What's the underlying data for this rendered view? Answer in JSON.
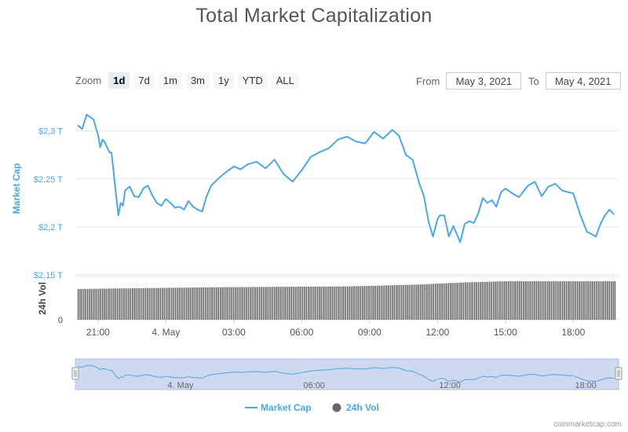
{
  "title": "Total Market Capitalization",
  "zoom": {
    "label": "Zoom",
    "buttons": [
      "1d",
      "7d",
      "1m",
      "3m",
      "1y",
      "YTD",
      "ALL"
    ],
    "active": "1d"
  },
  "range": {
    "from_label": "From",
    "from_value": "May 3, 2021",
    "to_label": "To",
    "to_value": "May 4, 2021"
  },
  "credit": "coinmarketcap.com",
  "colors": {
    "market_cap": "#4ca8e0",
    "volume": "#555555",
    "navigator_fill": "#c5d2ec"
  },
  "chart_data": {
    "type": "line",
    "title": "Total Market Capitalization",
    "ylabel": "Market Cap",
    "y_ticks": [
      "$2,15 T",
      "$2,2 T",
      "$2,25 T",
      "$2,3 T"
    ],
    "ylim": [
      2.15,
      2.33
    ],
    "x_unit": "hours from 20:00 May 3",
    "xlim": [
      0,
      24
    ],
    "x_ticks": [
      {
        "x": 1,
        "label": "21:00"
      },
      {
        "x": 4,
        "label": "4. May"
      },
      {
        "x": 7,
        "label": "03:00"
      },
      {
        "x": 10,
        "label": "06:00"
      },
      {
        "x": 13,
        "label": "09:00"
      },
      {
        "x": 16,
        "label": "12:00"
      },
      {
        "x": 19,
        "label": "15:00"
      },
      {
        "x": 22,
        "label": "18:00"
      }
    ],
    "market_cap_series": {
      "name": "Market Cap",
      "x": [
        0.1,
        0.3,
        0.5,
        0.8,
        1.0,
        1.1,
        1.2,
        1.3,
        1.5,
        1.6,
        1.8,
        1.9,
        2.0,
        2.1,
        2.2,
        2.4,
        2.6,
        2.8,
        3.0,
        3.2,
        3.4,
        3.6,
        3.8,
        4.0,
        4.2,
        4.4,
        4.6,
        4.8,
        5.0,
        5.2,
        5.4,
        5.6,
        5.8,
        6.0,
        6.3,
        6.6,
        7.0,
        7.3,
        7.6,
        8.0,
        8.4,
        8.8,
        9.2,
        9.6,
        10.0,
        10.4,
        10.8,
        11.2,
        11.6,
        12.0,
        12.4,
        12.8,
        13.2,
        13.6,
        14.0,
        14.3,
        14.6,
        14.9,
        15.2,
        15.4,
        15.6,
        15.8,
        16.0,
        16.1,
        16.3,
        16.5,
        16.7,
        17.0,
        17.2,
        17.4,
        17.6,
        17.8,
        18.0,
        18.2,
        18.4,
        18.6,
        18.8,
        19.0,
        19.3,
        19.6,
        20.0,
        20.3,
        20.6,
        20.9,
        21.2,
        21.5,
        21.8,
        22.0,
        22.3,
        22.6,
        23.0,
        23.2,
        23.4,
        23.6,
        23.8
      ],
      "values": [
        2.306,
        2.302,
        2.317,
        2.312,
        2.296,
        2.283,
        2.291,
        2.288,
        2.278,
        2.277,
        2.233,
        2.212,
        2.225,
        2.222,
        2.238,
        2.242,
        2.232,
        2.231,
        2.24,
        2.243,
        2.233,
        2.225,
        2.222,
        2.229,
        2.225,
        2.22,
        2.221,
        2.218,
        2.227,
        2.221,
        2.218,
        2.216,
        2.232,
        2.243,
        2.25,
        2.256,
        2.263,
        2.26,
        2.265,
        2.268,
        2.261,
        2.27,
        2.255,
        2.247,
        2.259,
        2.273,
        2.278,
        2.282,
        2.291,
        2.294,
        2.289,
        2.287,
        2.299,
        2.292,
        2.301,
        2.295,
        2.275,
        2.27,
        2.245,
        2.232,
        2.206,
        2.19,
        2.208,
        2.212,
        2.212,
        2.19,
        2.201,
        2.184,
        2.203,
        2.206,
        2.204,
        2.214,
        2.23,
        2.225,
        2.228,
        2.221,
        2.236,
        2.24,
        2.235,
        2.231,
        2.243,
        2.247,
        2.232,
        2.242,
        2.245,
        2.238,
        2.236,
        2.235,
        2.213,
        2.195,
        2.19,
        2.203,
        2.212,
        2.218,
        2.213
      ]
    },
    "volume_series": {
      "name": "24h Vol",
      "x": [
        0,
        3,
        6,
        9,
        12,
        15,
        17,
        19,
        21,
        23.9
      ],
      "values": [
        0.71,
        0.73,
        0.75,
        0.76,
        0.77,
        0.81,
        0.86,
        0.89,
        0.89,
        0.89
      ]
    },
    "volume_ylabel": "24h Vol",
    "volume_y_ticks": [
      "0"
    ],
    "navigator_ticks": [
      {
        "x": 4,
        "label": "4. May"
      },
      {
        "x": 10,
        "label": "06:00"
      },
      {
        "x": 16,
        "label": "12:00"
      },
      {
        "x": 22,
        "label": "18:00"
      }
    ],
    "legend": [
      "Market Cap",
      "24h Vol"
    ],
    "legend_position": "bottom-center",
    "grid": true
  }
}
